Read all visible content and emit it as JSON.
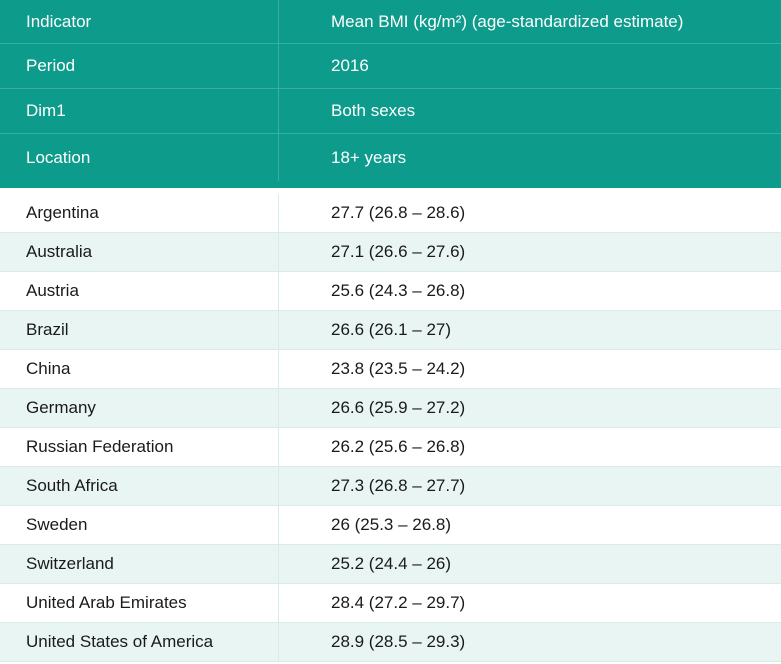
{
  "header_rows": [
    {
      "label": "Indicator",
      "value": "Mean BMI (kg/m²) (age-standardized estimate)"
    },
    {
      "label": "Period",
      "value": "2016"
    },
    {
      "label": "Dim1",
      "value": "Both sexes"
    },
    {
      "label": "Location",
      "value": "18+ years"
    }
  ],
  "rows": [
    {
      "country": "Argentina",
      "value": "27.7 (26.8 – 28.6)"
    },
    {
      "country": "Australia",
      "value": "27.1 (26.6 – 27.6)"
    },
    {
      "country": "Austria",
      "value": "25.6 (24.3 – 26.8)"
    },
    {
      "country": "Brazil",
      "value": "26.6 (26.1 – 27)"
    },
    {
      "country": "China",
      "value": "23.8 (23.5 – 24.2)"
    },
    {
      "country": "Germany",
      "value": "26.6 (25.9 – 27.2)"
    },
    {
      "country": "Russian Federation",
      "value": "26.2 (25.6 – 26.8)"
    },
    {
      "country": "South Africa",
      "value": "27.3 (26.8 – 27.7)"
    },
    {
      "country": "Sweden",
      "value": "26 (25.3 – 26.8)"
    },
    {
      "country": "Switzerland",
      "value": "25.2 (24.4 – 26)"
    },
    {
      "country": "United Arab Emirates",
      "value": "28.4 (27.2 – 29.7)"
    },
    {
      "country": "United States of America",
      "value": "28.9 (28.5 – 29.3)"
    }
  ],
  "colors": {
    "header_bg": "#0d9b8c",
    "stripe_bg": "#e8f5f3"
  }
}
